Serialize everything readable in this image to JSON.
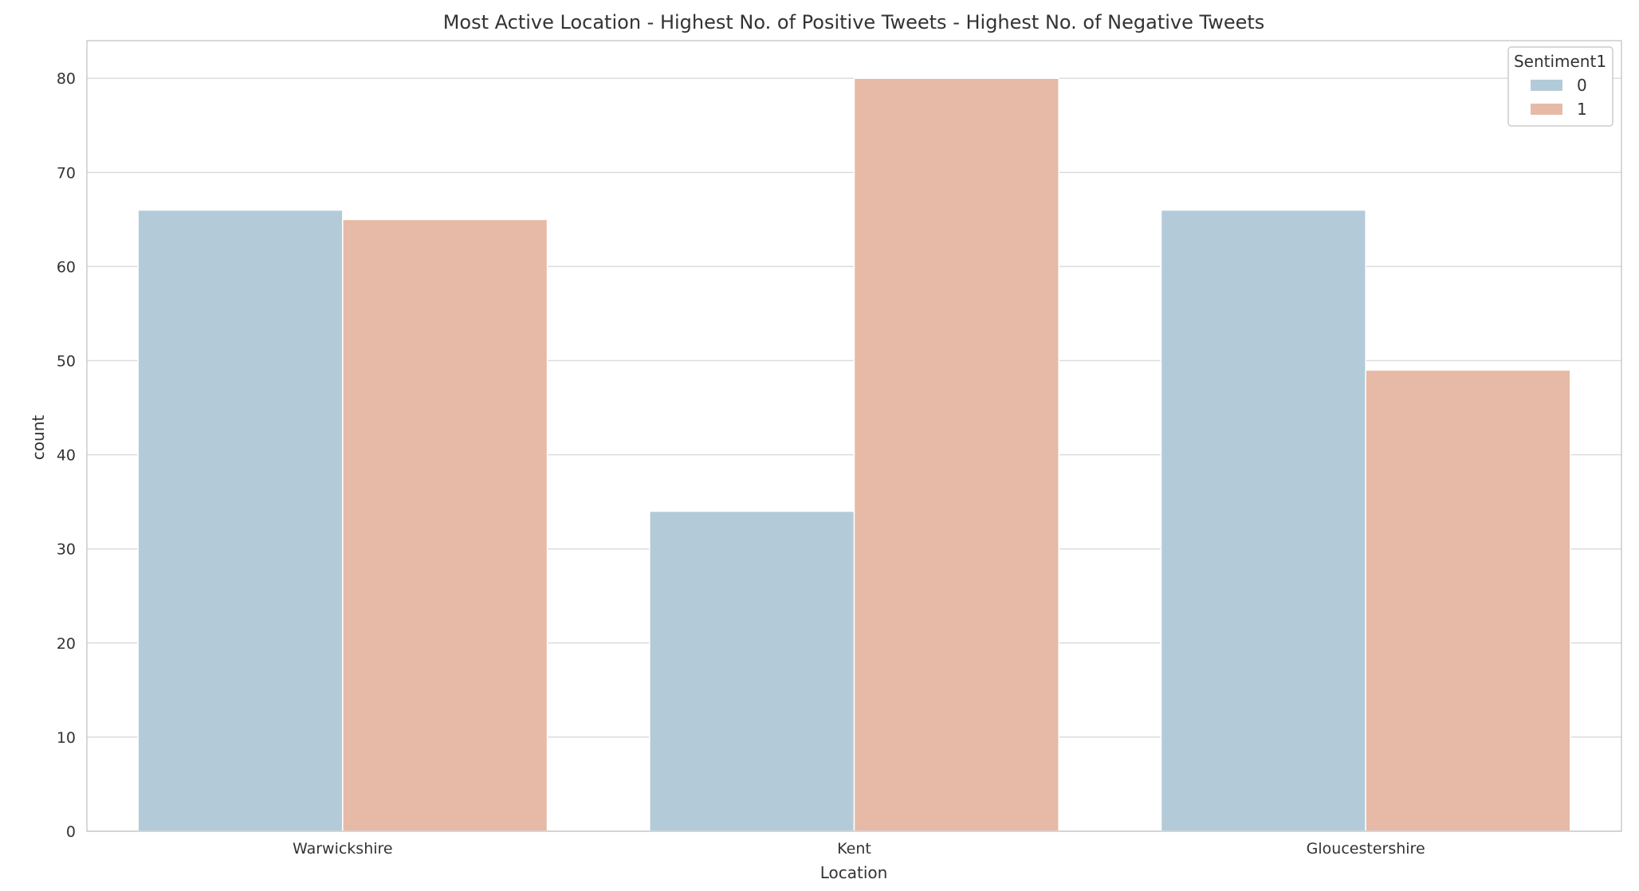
{
  "chart_data": {
    "type": "bar",
    "title": "Most Active Location - Highest No. of Positive Tweets - Highest No. of Negative Tweets",
    "xlabel": "Location",
    "ylabel": "count",
    "categories": [
      "Warwickshire",
      "Kent",
      "Gloucestershire"
    ],
    "series": [
      {
        "name": "0",
        "values": [
          66,
          34,
          66
        ],
        "color": "#b3cbd9"
      },
      {
        "name": "1",
        "values": [
          65,
          80,
          49
        ],
        "color": "#e6baa6"
      }
    ],
    "ylim": [
      0,
      84
    ],
    "yticks": [
      0,
      10,
      20,
      30,
      40,
      50,
      60,
      70,
      80
    ],
    "grid": true,
    "legend": {
      "title": "Sentiment1",
      "position": "top-right"
    }
  }
}
